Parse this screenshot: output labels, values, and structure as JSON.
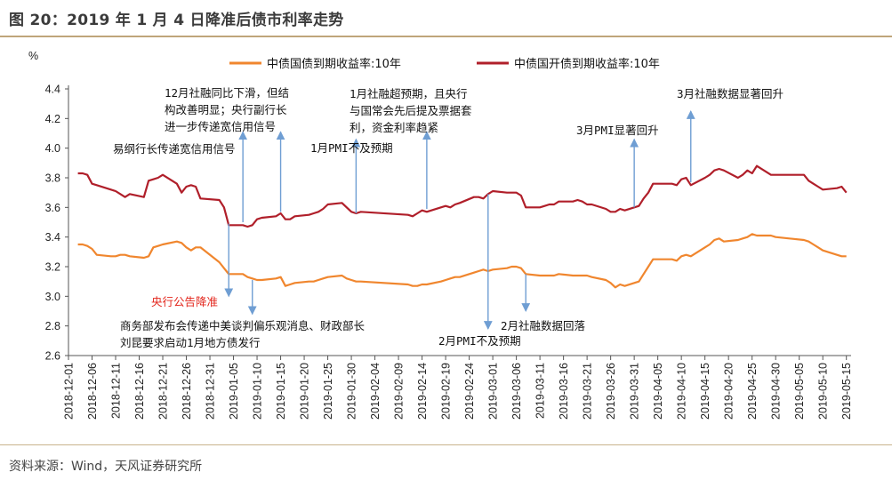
{
  "title": "图 20：2019 年 1 月 4 日降准后债市利率走势",
  "source": "资料来源：Wind，天风证券研究所",
  "colors": {
    "series_gov": "#f0862e",
    "series_cdb": "#b01f2a",
    "arrow": "#6f9ed3",
    "rule": "#bfa57a"
  },
  "chart_data": {
    "type": "line",
    "title": "",
    "xlabel": "",
    "ylabel": "%",
    "ylim": [
      2.6,
      4.4
    ],
    "y_ticks": [
      2.6,
      2.8,
      3.0,
      3.2,
      3.4,
      3.6,
      3.8,
      4.0,
      4.2,
      4.4
    ],
    "x_ticks": [
      "2018-12-01",
      "2018-12-06",
      "2018-12-11",
      "2018-12-16",
      "2018-12-21",
      "2018-12-26",
      "2018-12-31",
      "2019-01-05",
      "2019-01-10",
      "2019-01-15",
      "2019-01-20",
      "2019-01-25",
      "2019-01-30",
      "2019-02-04",
      "2019-02-09",
      "2019-02-14",
      "2019-02-19",
      "2019-02-24",
      "2019-03-01",
      "2019-03-06",
      "2019-03-11",
      "2019-03-16",
      "2019-03-21",
      "2019-03-26",
      "2019-03-31",
      "2019-04-05",
      "2019-04-10",
      "2019-04-15",
      "2019-04-20",
      "2019-04-25",
      "2019-04-30",
      "2019-05-05",
      "2019-05-10",
      "2019-05-15"
    ],
    "x_range": [
      "2018-12-01",
      "2019-05-16"
    ],
    "legend_position": "top-center",
    "grid": false,
    "series": [
      {
        "name": "中债国债到期收益率:10年",
        "color": "#f0862e",
        "points": [
          [
            "2018-12-03",
            3.35
          ],
          [
            "2018-12-04",
            3.35
          ],
          [
            "2018-12-05",
            3.34
          ],
          [
            "2018-12-06",
            3.32
          ],
          [
            "2018-12-07",
            3.28
          ],
          [
            "2018-12-10",
            3.27
          ],
          [
            "2018-12-11",
            3.27
          ],
          [
            "2018-12-12",
            3.28
          ],
          [
            "2018-12-13",
            3.28
          ],
          [
            "2018-12-14",
            3.27
          ],
          [
            "2018-12-17",
            3.26
          ],
          [
            "2018-12-18",
            3.27
          ],
          [
            "2018-12-19",
            3.33
          ],
          [
            "2018-12-20",
            3.34
          ],
          [
            "2018-12-21",
            3.35
          ],
          [
            "2018-12-24",
            3.37
          ],
          [
            "2018-12-25",
            3.36
          ],
          [
            "2018-12-26",
            3.33
          ],
          [
            "2018-12-27",
            3.31
          ],
          [
            "2018-12-28",
            3.33
          ],
          [
            "2018-12-29",
            3.33
          ],
          [
            "2019-01-02",
            3.23
          ],
          [
            "2019-01-03",
            3.19
          ],
          [
            "2019-01-04",
            3.15
          ],
          [
            "2019-01-07",
            3.15
          ],
          [
            "2019-01-08",
            3.13
          ],
          [
            "2019-01-09",
            3.12
          ],
          [
            "2019-01-10",
            3.11
          ],
          [
            "2019-01-11",
            3.11
          ],
          [
            "2019-01-14",
            3.12
          ],
          [
            "2019-01-15",
            3.13
          ],
          [
            "2019-01-16",
            3.07
          ],
          [
            "2019-01-17",
            3.08
          ],
          [
            "2019-01-18",
            3.09
          ],
          [
            "2019-01-21",
            3.1
          ],
          [
            "2019-01-22",
            3.1
          ],
          [
            "2019-01-23",
            3.11
          ],
          [
            "2019-01-24",
            3.12
          ],
          [
            "2019-01-25",
            3.13
          ],
          [
            "2019-01-28",
            3.14
          ],
          [
            "2019-01-29",
            3.12
          ],
          [
            "2019-01-30",
            3.11
          ],
          [
            "2019-01-31",
            3.1
          ],
          [
            "2019-02-01",
            3.1
          ],
          [
            "2019-02-11",
            3.08
          ],
          [
            "2019-02-12",
            3.07
          ],
          [
            "2019-02-13",
            3.07
          ],
          [
            "2019-02-14",
            3.08
          ],
          [
            "2019-02-15",
            3.08
          ],
          [
            "2019-02-18",
            3.1
          ],
          [
            "2019-02-19",
            3.11
          ],
          [
            "2019-02-20",
            3.12
          ],
          [
            "2019-02-21",
            3.13
          ],
          [
            "2019-02-22",
            3.13
          ],
          [
            "2019-02-25",
            3.16
          ],
          [
            "2019-02-26",
            3.17
          ],
          [
            "2019-02-27",
            3.18
          ],
          [
            "2019-02-28",
            3.17
          ],
          [
            "2019-03-01",
            3.18
          ],
          [
            "2019-03-04",
            3.19
          ],
          [
            "2019-03-05",
            3.2
          ],
          [
            "2019-03-06",
            3.2
          ],
          [
            "2019-03-07",
            3.19
          ],
          [
            "2019-03-08",
            3.15
          ],
          [
            "2019-03-11",
            3.14
          ],
          [
            "2019-03-12",
            3.14
          ],
          [
            "2019-03-13",
            3.14
          ],
          [
            "2019-03-14",
            3.14
          ],
          [
            "2019-03-15",
            3.15
          ],
          [
            "2019-03-18",
            3.14
          ],
          [
            "2019-03-19",
            3.14
          ],
          [
            "2019-03-20",
            3.14
          ],
          [
            "2019-03-21",
            3.14
          ],
          [
            "2019-03-22",
            3.13
          ],
          [
            "2019-03-25",
            3.11
          ],
          [
            "2019-03-26",
            3.09
          ],
          [
            "2019-03-27",
            3.06
          ],
          [
            "2019-03-28",
            3.08
          ],
          [
            "2019-03-29",
            3.07
          ],
          [
            "2019-04-01",
            3.1
          ],
          [
            "2019-04-02",
            3.15
          ],
          [
            "2019-04-03",
            3.2
          ],
          [
            "2019-04-04",
            3.25
          ],
          [
            "2019-04-08",
            3.25
          ],
          [
            "2019-04-09",
            3.24
          ],
          [
            "2019-04-10",
            3.27
          ],
          [
            "2019-04-11",
            3.28
          ],
          [
            "2019-04-12",
            3.27
          ],
          [
            "2019-04-15",
            3.33
          ],
          [
            "2019-04-16",
            3.35
          ],
          [
            "2019-04-17",
            3.38
          ],
          [
            "2019-04-18",
            3.39
          ],
          [
            "2019-04-19",
            3.37
          ],
          [
            "2019-04-22",
            3.38
          ],
          [
            "2019-04-23",
            3.39
          ],
          [
            "2019-04-24",
            3.4
          ],
          [
            "2019-04-25",
            3.42
          ],
          [
            "2019-04-26",
            3.41
          ],
          [
            "2019-04-29",
            3.41
          ],
          [
            "2019-04-30",
            3.4
          ],
          [
            "2019-05-06",
            3.38
          ],
          [
            "2019-05-07",
            3.37
          ],
          [
            "2019-05-08",
            3.35
          ],
          [
            "2019-05-09",
            3.33
          ],
          [
            "2019-05-10",
            3.31
          ],
          [
            "2019-05-13",
            3.28
          ],
          [
            "2019-05-14",
            3.27
          ],
          [
            "2019-05-15",
            3.27
          ]
        ]
      },
      {
        "name": "中债国开债到期收益率:10年",
        "color": "#b01f2a",
        "points": [
          [
            "2018-12-03",
            3.83
          ],
          [
            "2018-12-04",
            3.83
          ],
          [
            "2018-12-05",
            3.82
          ],
          [
            "2018-12-06",
            3.76
          ],
          [
            "2018-12-07",
            3.75
          ],
          [
            "2018-12-10",
            3.72
          ],
          [
            "2018-12-11",
            3.71
          ],
          [
            "2018-12-12",
            3.69
          ],
          [
            "2018-12-13",
            3.67
          ],
          [
            "2018-12-14",
            3.69
          ],
          [
            "2018-12-17",
            3.67
          ],
          [
            "2018-12-18",
            3.78
          ],
          [
            "2018-12-19",
            3.79
          ],
          [
            "2018-12-20",
            3.8
          ],
          [
            "2018-12-21",
            3.82
          ],
          [
            "2018-12-24",
            3.76
          ],
          [
            "2018-12-25",
            3.7
          ],
          [
            "2018-12-26",
            3.74
          ],
          [
            "2018-12-27",
            3.75
          ],
          [
            "2018-12-28",
            3.74
          ],
          [
            "2018-12-29",
            3.66
          ],
          [
            "2019-01-02",
            3.65
          ],
          [
            "2019-01-03",
            3.6
          ],
          [
            "2019-01-04",
            3.48
          ],
          [
            "2019-01-07",
            3.48
          ],
          [
            "2019-01-08",
            3.47
          ],
          [
            "2019-01-09",
            3.48
          ],
          [
            "2019-01-10",
            3.52
          ],
          [
            "2019-01-11",
            3.53
          ],
          [
            "2019-01-14",
            3.54
          ],
          [
            "2019-01-15",
            3.56
          ],
          [
            "2019-01-16",
            3.52
          ],
          [
            "2019-01-17",
            3.52
          ],
          [
            "2019-01-18",
            3.54
          ],
          [
            "2019-01-21",
            3.55
          ],
          [
            "2019-01-22",
            3.56
          ],
          [
            "2019-01-23",
            3.57
          ],
          [
            "2019-01-24",
            3.59
          ],
          [
            "2019-01-25",
            3.62
          ],
          [
            "2019-01-28",
            3.63
          ],
          [
            "2019-01-29",
            3.6
          ],
          [
            "2019-01-30",
            3.57
          ],
          [
            "2019-01-31",
            3.56
          ],
          [
            "2019-02-01",
            3.57
          ],
          [
            "2019-02-11",
            3.55
          ],
          [
            "2019-02-12",
            3.54
          ],
          [
            "2019-02-13",
            3.56
          ],
          [
            "2019-02-14",
            3.58
          ],
          [
            "2019-02-15",
            3.57
          ],
          [
            "2019-02-18",
            3.6
          ],
          [
            "2019-02-19",
            3.61
          ],
          [
            "2019-02-20",
            3.6
          ],
          [
            "2019-02-21",
            3.62
          ],
          [
            "2019-02-22",
            3.63
          ],
          [
            "2019-02-25",
            3.67
          ],
          [
            "2019-02-26",
            3.67
          ],
          [
            "2019-02-27",
            3.66
          ],
          [
            "2019-02-28",
            3.69
          ],
          [
            "2019-03-01",
            3.71
          ],
          [
            "2019-03-04",
            3.7
          ],
          [
            "2019-03-05",
            3.7
          ],
          [
            "2019-03-06",
            3.7
          ],
          [
            "2019-03-07",
            3.68
          ],
          [
            "2019-03-08",
            3.6
          ],
          [
            "2019-03-11",
            3.6
          ],
          [
            "2019-03-12",
            3.61
          ],
          [
            "2019-03-13",
            3.62
          ],
          [
            "2019-03-14",
            3.62
          ],
          [
            "2019-03-15",
            3.64
          ],
          [
            "2019-03-18",
            3.64
          ],
          [
            "2019-03-19",
            3.65
          ],
          [
            "2019-03-20",
            3.64
          ],
          [
            "2019-03-21",
            3.62
          ],
          [
            "2019-03-22",
            3.62
          ],
          [
            "2019-03-25",
            3.59
          ],
          [
            "2019-03-26",
            3.57
          ],
          [
            "2019-03-27",
            3.57
          ],
          [
            "2019-03-28",
            3.59
          ],
          [
            "2019-03-29",
            3.58
          ],
          [
            "2019-04-01",
            3.61
          ],
          [
            "2019-04-02",
            3.66
          ],
          [
            "2019-04-03",
            3.7
          ],
          [
            "2019-04-04",
            3.76
          ],
          [
            "2019-04-08",
            3.76
          ],
          [
            "2019-04-09",
            3.75
          ],
          [
            "2019-04-10",
            3.79
          ],
          [
            "2019-04-11",
            3.8
          ],
          [
            "2019-04-12",
            3.75
          ],
          [
            "2019-04-15",
            3.8
          ],
          [
            "2019-04-16",
            3.82
          ],
          [
            "2019-04-17",
            3.85
          ],
          [
            "2019-04-18",
            3.86
          ],
          [
            "2019-04-19",
            3.85
          ],
          [
            "2019-04-22",
            3.8
          ],
          [
            "2019-04-23",
            3.82
          ],
          [
            "2019-04-24",
            3.85
          ],
          [
            "2019-04-25",
            3.83
          ],
          [
            "2019-04-26",
            3.88
          ],
          [
            "2019-04-29",
            3.82
          ],
          [
            "2019-04-30",
            3.82
          ],
          [
            "2019-05-06",
            3.82
          ],
          [
            "2019-05-07",
            3.78
          ],
          [
            "2019-05-08",
            3.76
          ],
          [
            "2019-05-09",
            3.74
          ],
          [
            "2019-05-10",
            3.72
          ],
          [
            "2019-05-13",
            3.73
          ],
          [
            "2019-05-14",
            3.74
          ],
          [
            "2019-05-15",
            3.7
          ]
        ]
      }
    ],
    "annotations": [
      {
        "lines": [
          "易纲行长传递宽信用信号"
        ],
        "date": "2019-01-07",
        "arrow_from": 3.5,
        "arrow_to": 4.11,
        "color": "black"
      },
      {
        "lines": [
          "12月社融同比下滑，但结",
          "构改善明显；央行副行长",
          "进一步传递宽信用信号"
        ],
        "date": "2019-01-15",
        "arrow_from": 3.57,
        "arrow_to": 4.11,
        "color": "black"
      },
      {
        "lines": [
          "1月PMI不及预期"
        ],
        "date": "2019-01-31",
        "arrow_from": 3.56,
        "arrow_to": 4.06,
        "color": "black"
      },
      {
        "lines": [
          "1月社融超预期，且央行",
          "与国常会先后提及票据套",
          "利，资金利率趋紧"
        ],
        "date": "2019-02-15",
        "arrow_from": 3.59,
        "arrow_to": 4.11,
        "color": "black"
      },
      {
        "lines": [
          "3月PMI显著回升"
        ],
        "date": "2019-03-31",
        "arrow_from": 3.6,
        "arrow_to": 4.06,
        "color": "black"
      },
      {
        "lines": [
          "3月社融数据显著回升"
        ],
        "date": "2019-04-12",
        "arrow_from": 3.77,
        "arrow_to": 4.25,
        "color": "black"
      },
      {
        "lines": [
          "央行公告降准"
        ],
        "date": "2019-01-04",
        "arrow_from": 3.49,
        "arrow_to": 3.0,
        "color": "red"
      },
      {
        "lines": [
          "商务部发布会传递中美谈判偏乐观消息、财政部长",
          "刘昆要求启动1月地方债发行"
        ],
        "date": "2019-01-09",
        "arrow_from": 3.11,
        "arrow_to": 2.88,
        "color": "black"
      },
      {
        "lines": [
          "2月PMI不及预期"
        ],
        "date": "2019-02-28",
        "arrow_from": 3.69,
        "arrow_to": 2.78,
        "color": "black"
      },
      {
        "lines": [
          "2月社融数据回落"
        ],
        "date": "2019-03-08",
        "arrow_from": 3.15,
        "arrow_to": 2.9,
        "color": "black"
      }
    ]
  }
}
